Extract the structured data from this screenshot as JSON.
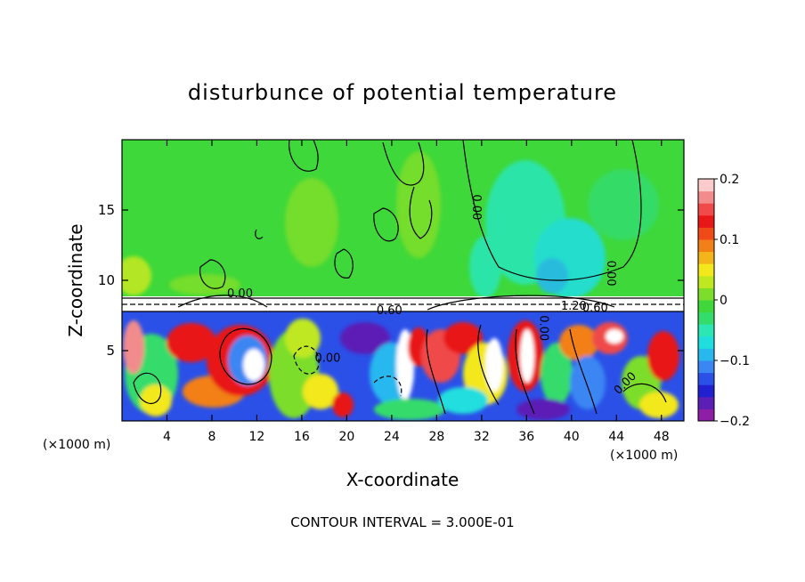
{
  "chart_data": {
    "type": "heatmap",
    "title": "disturbunce of potential temperature",
    "xlabel": "X-coordinate",
    "ylabel": "Z-coordinate",
    "x_unit_label": "(×1000 m)",
    "y_unit_label": "(×1000 m)",
    "xlim": [
      0,
      50
    ],
    "ylim": [
      0,
      20
    ],
    "x_ticks": [
      4,
      8,
      12,
      16,
      20,
      24,
      28,
      32,
      36,
      40,
      44,
      48
    ],
    "y_ticks": [
      5,
      10,
      15
    ],
    "colorbar": {
      "range": [
        -0.2,
        0.2
      ],
      "ticks": [
        "0.2",
        "0.1",
        "0",
        "−0.1",
        "−0.2"
      ],
      "tick_values": [
        0.2,
        0.1,
        0,
        -0.1,
        -0.2
      ],
      "colors": [
        "#8e1ea6",
        "#5b1fb5",
        "#2020d0",
        "#2b50e8",
        "#3a86f2",
        "#28b8ee",
        "#20dede",
        "#2ce6b4",
        "#34dc6c",
        "#3ed83a",
        "#7cde2a",
        "#c0e820",
        "#f2e81c",
        "#f2b61c",
        "#f28018",
        "#ef4a18",
        "#e81818",
        "#f04a4a",
        "#f28c8c",
        "#fbcaca"
      ]
    },
    "contour_labels": [
      "0.00",
      "0.00",
      "0.00",
      "0.60",
      "1.20",
      "0.60",
      "0.00",
      "0.00",
      "0.00"
    ],
    "grid": false,
    "legend": "colorbar-right"
  },
  "footer": {
    "contour_interval": "CONTOUR INTERVAL = 3.000E-01"
  }
}
